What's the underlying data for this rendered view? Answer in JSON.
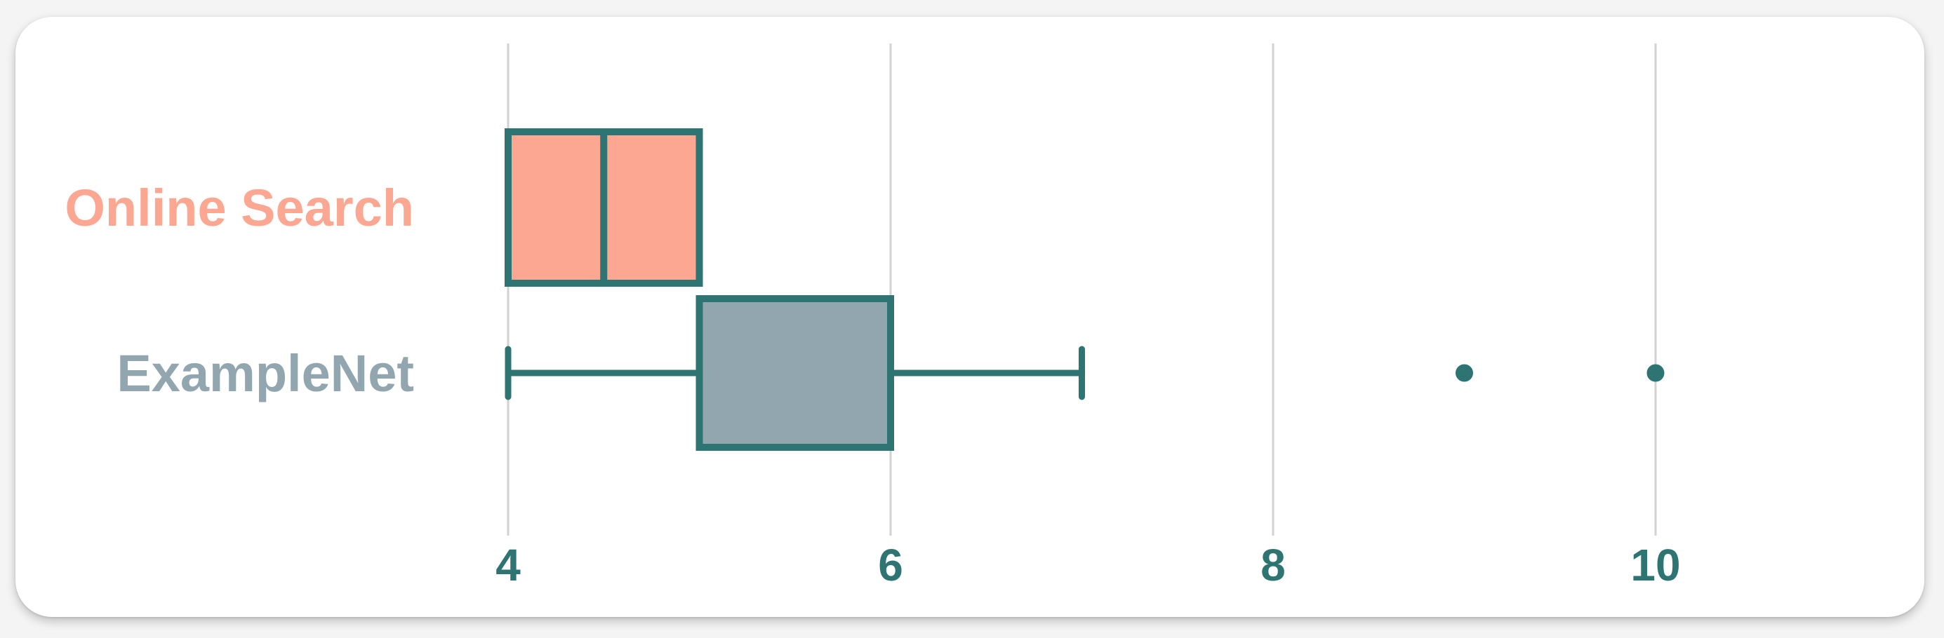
{
  "chart_data": {
    "type": "boxplot",
    "orientation": "horizontal",
    "title": "",
    "xlabel": "",
    "ylabel": "",
    "xlim": [
      1.0,
      11.4
    ],
    "x_ticks": [
      4,
      6,
      8,
      10
    ],
    "x_tick_labels": [
      "4",
      "6",
      "8",
      "10"
    ],
    "grid": "vertical",
    "series": [
      {
        "name": "Online Search",
        "color": "#fca792",
        "min": 4,
        "q1": 4,
        "median": 4.5,
        "q3": 5,
        "max": 5,
        "outliers": []
      },
      {
        "name": "ExampleNet",
        "color": "#92a6b0",
        "min": 4,
        "q1": 5,
        "median": 5,
        "q3": 6,
        "max": 7,
        "outliers": [
          9,
          10
        ]
      }
    ],
    "colors": {
      "stroke": "#2d7472",
      "grid": "#d2d2d2",
      "tick_label": "#2d7472",
      "card": "#ffffff"
    }
  }
}
